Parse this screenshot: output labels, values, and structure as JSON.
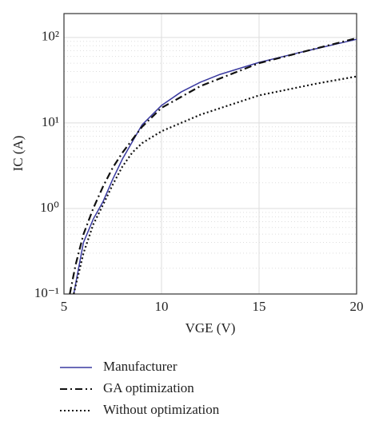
{
  "chart_data": {
    "type": "line",
    "xlabel": "VGE (V)",
    "ylabel": "IC (A)",
    "xlim": [
      5,
      20
    ],
    "xticks": [
      5,
      10,
      15,
      20
    ],
    "ylim": [
      0.1,
      190
    ],
    "yscale": "log",
    "yticks": [
      {
        "value": 0.1,
        "label": "10⁻¹"
      },
      {
        "value": 1,
        "label": "10⁰"
      },
      {
        "value": 10,
        "label": "10¹"
      },
      {
        "value": 100,
        "label": "10²"
      }
    ],
    "grid": true,
    "series": [
      {
        "name": "Manufacturer",
        "color": "#3a3aa0",
        "dash": "solid",
        "x": [
          5.5,
          6,
          6.5,
          7,
          7.5,
          8,
          8.5,
          9,
          10,
          11,
          12,
          13,
          15,
          17,
          20
        ],
        "values": [
          0.1,
          0.4,
          0.75,
          1.2,
          2.2,
          3.8,
          6,
          9.5,
          16,
          23,
          30,
          37,
          51,
          66,
          95
        ]
      },
      {
        "name": "GA optimization",
        "color": "#111111",
        "dash": "dashdot",
        "x": [
          5.3,
          5.6,
          6,
          6.5,
          7,
          7.5,
          8,
          9,
          10,
          12,
          15,
          18,
          20
        ],
        "values": [
          0.1,
          0.22,
          0.5,
          1.0,
          1.8,
          3.0,
          4.5,
          9,
          15,
          27,
          50,
          75,
          98
        ]
      },
      {
        "name": "Without optimization",
        "color": "#111111",
        "dash": "dotted",
        "x": [
          5.5,
          6,
          6.5,
          7,
          7.5,
          8,
          8.5,
          9,
          10,
          12,
          15,
          18,
          20
        ],
        "values": [
          0.1,
          0.3,
          0.65,
          1.1,
          1.9,
          3.1,
          4.5,
          5.8,
          8,
          12.5,
          21,
          29,
          35
        ]
      }
    ]
  }
}
